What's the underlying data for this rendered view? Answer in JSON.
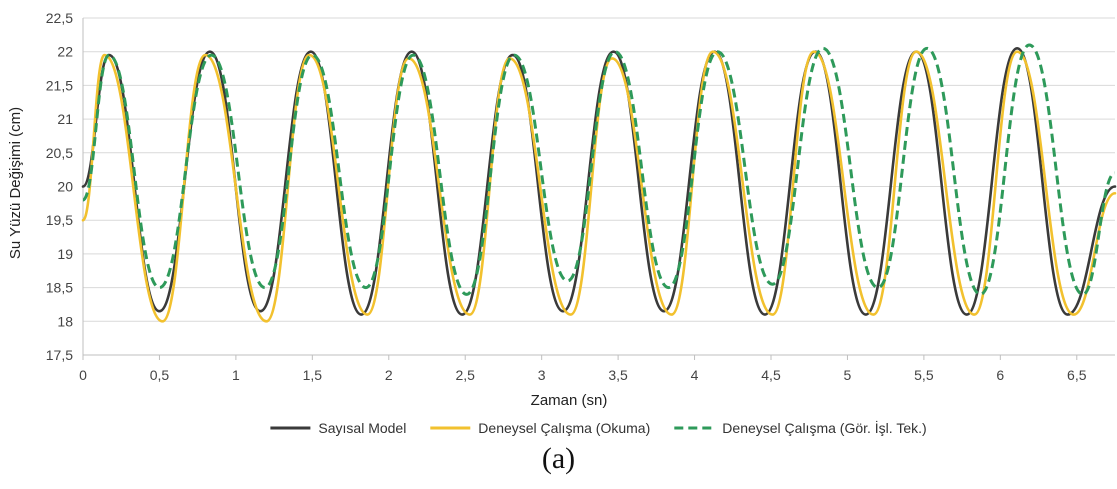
{
  "chart_data": {
    "type": "line",
    "xlabel": "Zaman (sn)",
    "ylabel": "Su Yüzü Değişimi (cm)",
    "xlim": [
      0,
      6.75
    ],
    "ylim": [
      17.5,
      22.5
    ],
    "x_ticks": [
      "0",
      "0,5",
      "1",
      "1,5",
      "2",
      "2,5",
      "3",
      "3,5",
      "4",
      "4,5",
      "5",
      "5,5",
      "6",
      "6,5"
    ],
    "x_tick_values": [
      0,
      0.5,
      1,
      1.5,
      2,
      2.5,
      3,
      3.5,
      4,
      4.5,
      5,
      5.5,
      6,
      6.5
    ],
    "y_ticks": [
      "17,5",
      "18",
      "18,5",
      "19",
      "19,5",
      "20",
      "20,5",
      "21",
      "21,5",
      "22",
      "22,5"
    ],
    "y_tick_values": [
      17.5,
      18,
      18.5,
      19,
      19.5,
      20,
      20.5,
      21,
      21.5,
      22,
      22.5
    ],
    "grid": "horizontal",
    "legend": "bottom",
    "series": [
      {
        "name": "Sayısal Model",
        "color": "#3a3a3a",
        "style": "solid",
        "x": [
          0,
          0.17,
          0.5,
          0.83,
          1.16,
          1.49,
          1.82,
          2.15,
          2.48,
          2.81,
          3.14,
          3.47,
          3.8,
          4.13,
          4.46,
          4.79,
          5.12,
          5.45,
          5.78,
          6.11,
          6.44,
          6.75
        ],
        "y": [
          20.0,
          21.95,
          18.15,
          22.0,
          18.15,
          22.0,
          18.1,
          22.0,
          18.1,
          21.95,
          18.15,
          22.0,
          18.15,
          22.0,
          18.1,
          22.0,
          18.1,
          22.0,
          18.1,
          22.05,
          18.1,
          20.0
        ]
      },
      {
        "name": "Deneysel Çalışma (Okuma)",
        "color": "#f2c12e",
        "style": "solid",
        "x": [
          0,
          0.14,
          0.52,
          0.8,
          1.2,
          1.48,
          1.86,
          2.13,
          2.53,
          2.79,
          3.19,
          3.46,
          3.85,
          4.12,
          4.51,
          4.78,
          5.17,
          5.45,
          5.83,
          6.11,
          6.48,
          6.75
        ],
        "y": [
          19.5,
          21.95,
          18.0,
          21.95,
          18.0,
          21.95,
          18.1,
          21.9,
          18.1,
          21.9,
          18.1,
          21.9,
          18.1,
          22.0,
          18.1,
          22.0,
          18.1,
          22.0,
          18.1,
          22.0,
          18.1,
          19.9
        ]
      },
      {
        "name": "Deneysel Çalışma (Gör. İşl. Tek.)",
        "color": "#2e9a5a",
        "style": "dashed",
        "x": [
          0,
          0.17,
          0.5,
          0.84,
          1.19,
          1.5,
          1.85,
          2.16,
          2.51,
          2.82,
          3.17,
          3.48,
          3.83,
          4.15,
          4.51,
          4.84,
          5.2,
          5.52,
          5.87,
          6.19,
          6.54,
          6.75
        ],
        "y": [
          19.8,
          21.95,
          18.5,
          21.95,
          18.5,
          21.95,
          18.5,
          21.95,
          18.4,
          21.95,
          18.6,
          22.0,
          18.5,
          22.0,
          18.55,
          22.05,
          18.5,
          22.05,
          18.4,
          22.1,
          18.4,
          20.2
        ]
      }
    ]
  },
  "caption": "(a)"
}
